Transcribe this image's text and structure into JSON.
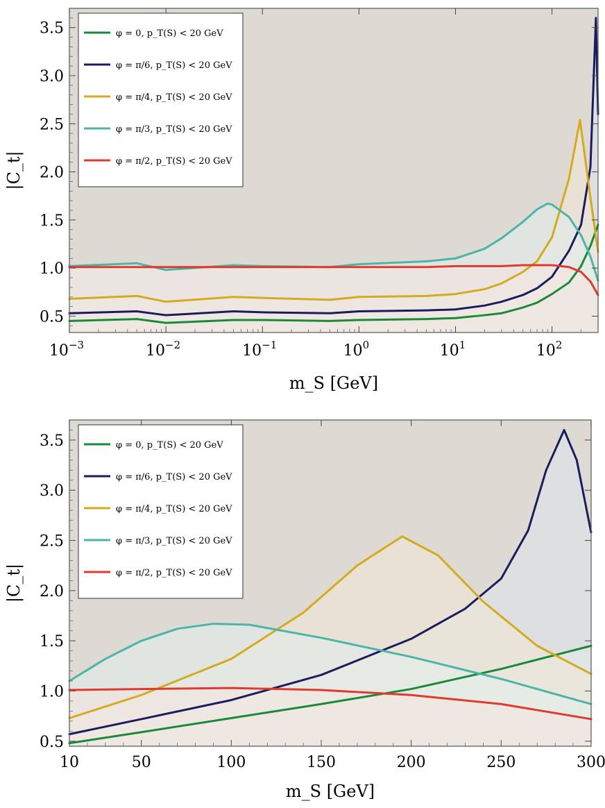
{
  "chart_data": [
    {
      "type": "line",
      "xscale": "log",
      "xlabel": "m_S [GeV]",
      "ylabel": "|C_t|",
      "xlim": [
        0.001,
        300
      ],
      "ylim": [
        0.33,
        3.7
      ],
      "xticks": [
        0.001,
        0.01,
        0.1,
        1,
        10,
        100
      ],
      "xtick_labels": [
        "10^-3",
        "10^-2",
        "10^-1",
        "10^0",
        "10^1",
        "10^2"
      ],
      "yticks": [
        0.5,
        1.0,
        1.5,
        2.0,
        2.5,
        3.0,
        3.5
      ],
      "ytick_labels": [
        "0.5",
        "1.0",
        "1.5",
        "2.0",
        "2.5",
        "3.0",
        "3.5"
      ],
      "legend_position": "top-left",
      "series": [
        {
          "name": "φ = 0, p_T(S) < 20 GeV",
          "color": "#1a8a3a",
          "fill": "#e6f2e2",
          "x": [
            0.001,
            0.005,
            0.01,
            0.05,
            0.1,
            0.5,
            1,
            5,
            10,
            20,
            30,
            50,
            70,
            100,
            150,
            200,
            250,
            300
          ],
          "y": [
            0.45,
            0.47,
            0.43,
            0.46,
            0.46,
            0.45,
            0.46,
            0.47,
            0.48,
            0.51,
            0.53,
            0.59,
            0.64,
            0.73,
            0.85,
            1.02,
            1.23,
            1.45
          ]
        },
        {
          "name": "φ = π/6, p_T(S) < 20 GeV",
          "color": "#1b1b5e",
          "fill": "#dfe4ec",
          "x": [
            0.001,
            0.005,
            0.01,
            0.05,
            0.1,
            0.5,
            1,
            5,
            10,
            20,
            30,
            50,
            70,
            100,
            150,
            200,
            250,
            285,
            300
          ],
          "y": [
            0.53,
            0.55,
            0.51,
            0.55,
            0.54,
            0.53,
            0.55,
            0.56,
            0.57,
            0.61,
            0.65,
            0.72,
            0.79,
            0.91,
            1.18,
            1.45,
            2.05,
            3.6,
            2.6
          ]
        },
        {
          "name": "φ = π/4, p_T(S) < 20 GeV",
          "color": "#d4aa20",
          "fill": "#f1e8d6",
          "x": [
            0.001,
            0.005,
            0.01,
            0.05,
            0.1,
            0.5,
            1,
            5,
            10,
            20,
            30,
            50,
            70,
            100,
            150,
            195,
            250,
            300
          ],
          "y": [
            0.68,
            0.71,
            0.65,
            0.7,
            0.69,
            0.67,
            0.7,
            0.71,
            0.73,
            0.78,
            0.84,
            0.96,
            1.07,
            1.32,
            1.93,
            2.54,
            1.73,
            1.17
          ]
        },
        {
          "name": "φ = π/3, p_T(S) < 20 GeV",
          "color": "#4bb5a8",
          "fill": "#e1efec",
          "x": [
            0.001,
            0.005,
            0.01,
            0.05,
            0.1,
            0.5,
            1,
            5,
            10,
            20,
            30,
            50,
            70,
            90,
            100,
            150,
            200,
            250,
            300
          ],
          "y": [
            1.02,
            1.05,
            0.98,
            1.03,
            1.02,
            1.01,
            1.04,
            1.07,
            1.1,
            1.2,
            1.31,
            1.48,
            1.61,
            1.67,
            1.66,
            1.53,
            1.34,
            1.12,
            0.87
          ]
        },
        {
          "name": "φ = π/2, p_T(S) < 20 GeV",
          "color": "#e03a2e",
          "fill": "#f6e4e0",
          "x": [
            0.001,
            0.005,
            0.01,
            0.05,
            0.1,
            0.5,
            1,
            5,
            10,
            20,
            30,
            50,
            70,
            100,
            150,
            200,
            250,
            300
          ],
          "y": [
            1.01,
            1.01,
            1.01,
            1.01,
            1.01,
            1.01,
            1.01,
            1.01,
            1.02,
            1.02,
            1.02,
            1.03,
            1.03,
            1.03,
            1.01,
            0.96,
            0.86,
            0.72
          ]
        }
      ]
    },
    {
      "type": "line",
      "xscale": "linear",
      "xlabel": "m_S [GeV]",
      "ylabel": "|C_t|",
      "xlim": [
        10,
        300
      ],
      "ylim": [
        0.45,
        3.7
      ],
      "xticks": [
        10,
        50,
        100,
        150,
        200,
        250,
        300
      ],
      "xtick_labels": [
        "10",
        "50",
        "100",
        "150",
        "200",
        "250",
        "300"
      ],
      "yticks": [
        0.5,
        1.0,
        1.5,
        2.0,
        2.5,
        3.0,
        3.5
      ],
      "ytick_labels": [
        "0.5",
        "1.0",
        "1.5",
        "2.0",
        "2.5",
        "3.0",
        "3.5"
      ],
      "legend_position": "top-left",
      "series": [
        {
          "name": "φ = 0, p_T(S) < 20 GeV",
          "color": "#1a8a3a",
          "fill": "#e6f2e2",
          "x": [
            10,
            50,
            100,
            150,
            200,
            250,
            300
          ],
          "y": [
            0.48,
            0.59,
            0.73,
            0.87,
            1.02,
            1.22,
            1.45
          ]
        },
        {
          "name": "φ = π/6, p_T(S) < 20 GeV",
          "color": "#1b1b5e",
          "fill": "#dfe4ec",
          "x": [
            10,
            50,
            100,
            150,
            200,
            230,
            250,
            265,
            275,
            285,
            292,
            300
          ],
          "y": [
            0.57,
            0.72,
            0.91,
            1.16,
            1.52,
            1.82,
            2.12,
            2.6,
            3.2,
            3.6,
            3.3,
            2.58
          ]
        },
        {
          "name": "φ = π/4, p_T(S) < 20 GeV",
          "color": "#d4aa20",
          "fill": "#f1e8d6",
          "x": [
            10,
            50,
            100,
            140,
            170,
            195,
            215,
            240,
            270,
            300
          ],
          "y": [
            0.73,
            0.96,
            1.32,
            1.78,
            2.25,
            2.54,
            2.35,
            1.89,
            1.45,
            1.17
          ]
        },
        {
          "name": "φ = π/3, p_T(S) < 20 GeV",
          "color": "#4bb5a8",
          "fill": "#e1efec",
          "x": [
            10,
            30,
            50,
            70,
            90,
            110,
            150,
            200,
            250,
            300
          ],
          "y": [
            1.1,
            1.32,
            1.5,
            1.62,
            1.67,
            1.66,
            1.53,
            1.34,
            1.12,
            0.87
          ]
        },
        {
          "name": "φ = π/2, p_T(S) < 20 GeV",
          "color": "#e03a2e",
          "fill": "#f6e4e0",
          "x": [
            10,
            50,
            100,
            150,
            200,
            250,
            300
          ],
          "y": [
            1.01,
            1.02,
            1.03,
            1.01,
            0.96,
            0.87,
            0.72
          ]
        }
      ]
    }
  ]
}
